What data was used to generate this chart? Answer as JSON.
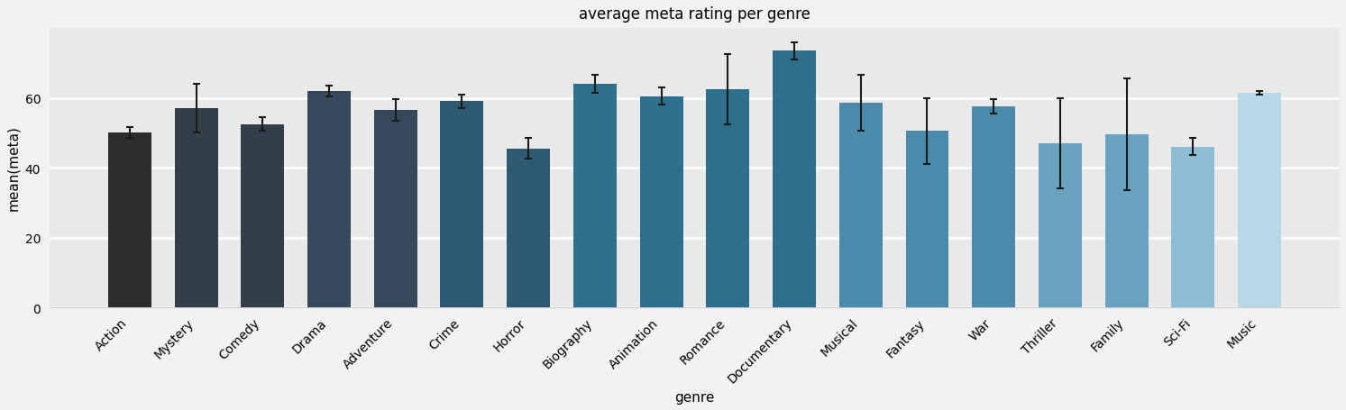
{
  "title": "average meta rating per genre",
  "xlabel": "genre",
  "ylabel": "mean(meta)",
  "categories": [
    "Action",
    "Mystery",
    "Comedy",
    "Drama",
    "Adventure",
    "Crime",
    "Horror",
    "Biography",
    "Animation",
    "Romance",
    "Documentary",
    "Musical",
    "Fantasy",
    "War",
    "Thriller",
    "Family",
    "Sci-Fi",
    "Music"
  ],
  "values": [
    50.0,
    57.0,
    52.5,
    62.0,
    56.5,
    59.0,
    45.5,
    64.0,
    60.5,
    62.5,
    73.5,
    58.5,
    50.5,
    57.5,
    47.0,
    49.5,
    46.0,
    61.5
  ],
  "errors": [
    1.5,
    7.0,
    2.0,
    1.5,
    3.0,
    2.0,
    3.0,
    2.5,
    2.5,
    10.0,
    2.5,
    8.0,
    9.5,
    2.0,
    13.0,
    16.0,
    2.5,
    0.5
  ],
  "colors": [
    "#2d2d2d",
    "#323e4a",
    "#323e4a",
    "#35495a",
    "#35495a",
    "#2d5971",
    "#2d5971",
    "#2e6f8e",
    "#2e6f8e",
    "#2e6f8e",
    "#2e6f8e",
    "#4c8aab",
    "#4c8aab",
    "#4c8aab",
    "#6aa3c0",
    "#6aa3c0",
    "#8dbdd4",
    "#b8d8e8"
  ],
  "plot_bg": "#e9e9e9",
  "fig_bg": "#f2f2f2",
  "grid_color": "#ffffff",
  "spine_color": "#cccccc",
  "ylim": [
    0,
    80
  ],
  "yticks": [
    0,
    20,
    40,
    60
  ],
  "bar_width": 0.65,
  "title_fontsize": 12,
  "label_fontsize": 11,
  "tick_fontsize": 10,
  "error_color": "#1a1a1a",
  "error_linewidth": 1.5,
  "error_capsize": 3,
  "error_capthick": 1.5
}
